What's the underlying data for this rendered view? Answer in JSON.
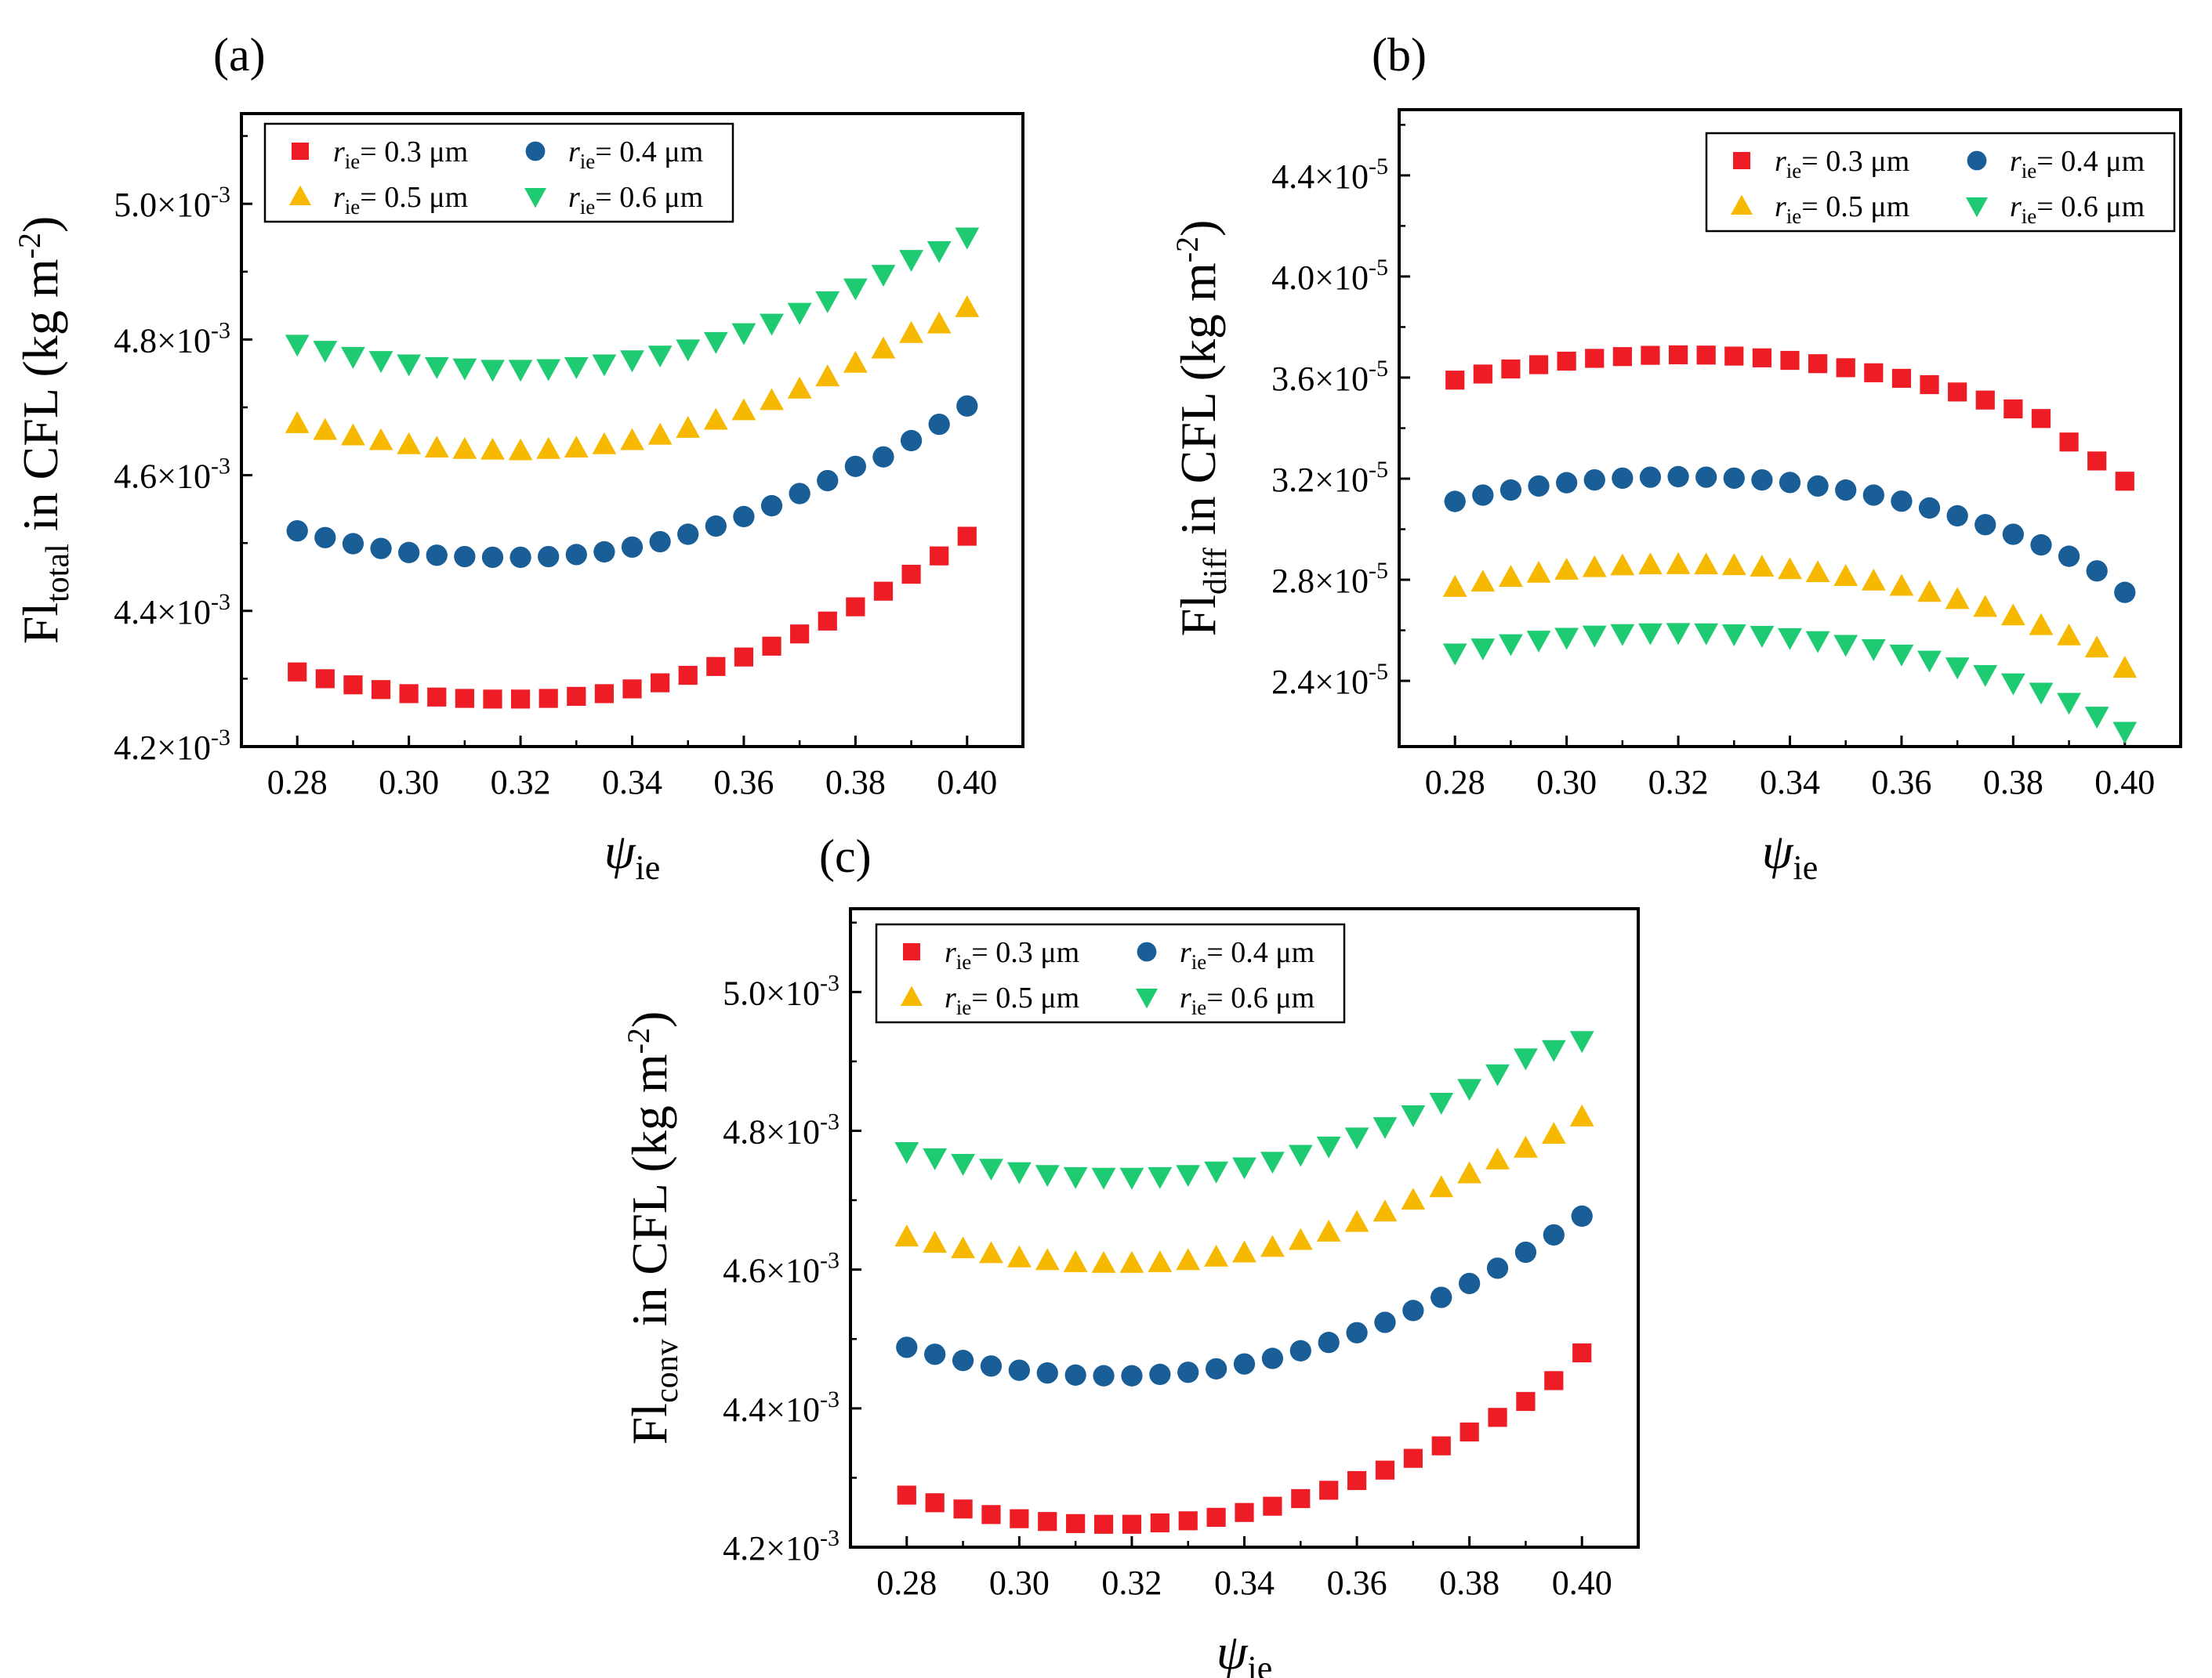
{
  "figure": {
    "colors": {
      "r03": "#EE1C25",
      "r04": "#1A5E97",
      "r05": "#F7B800",
      "r06": "#1FCB72"
    },
    "legend": [
      {
        "key": "r03",
        "prefix": "r",
        "subscript": "ie",
        "text": "= 0.3 μm",
        "marker": "square"
      },
      {
        "key": "r04",
        "prefix": "r",
        "subscript": "ie",
        "text": "= 0.4 μm",
        "marker": "circle"
      },
      {
        "key": "r05",
        "prefix": "r",
        "subscript": "ie",
        "text": "= 0.5 μm",
        "marker": "triangle-up"
      },
      {
        "key": "r06",
        "prefix": "r",
        "subscript": "ie",
        "text": "= 0.6 μm",
        "marker": "triangle-down"
      }
    ]
  },
  "chart_data": [
    {
      "id": "a",
      "panel_label": "(a)",
      "type": "scatter",
      "xlabel": {
        "main": "ψ",
        "sub": "ie"
      },
      "ylabel": {
        "main": "Fl",
        "sub": "total",
        "rest": " in CFL (kg m",
        "sup": "-2",
        "close": ")"
      },
      "xlim": [
        0.27,
        0.41
      ],
      "ylim": [
        0.0042,
        0.005133
      ],
      "x_ticks": [
        0.28,
        0.3,
        0.32,
        0.34,
        0.36,
        0.38,
        0.4
      ],
      "x_tick_labels": [
        "0.28",
        "0.30",
        "0.32",
        "0.34",
        "0.36",
        "0.38",
        "0.40"
      ],
      "y_ticks": [
        0.0042,
        0.0044,
        0.0046,
        0.0048,
        0.005
      ],
      "y_tick_labels": [
        {
          "mant": "4.2×10",
          "exp": "-3"
        },
        {
          "mant": "4.4×10",
          "exp": "-3"
        },
        {
          "mant": "4.6×10",
          "exp": "-3"
        },
        {
          "mant": "4.8×10",
          "exp": "-3"
        },
        {
          "mant": "5.0×10",
          "exp": "-3"
        }
      ],
      "legend_position": "top-left",
      "x_start": 0.28,
      "x_step": 0.005,
      "series": [
        {
          "key": "r03",
          "name": "r_ie = 0.3 μm",
          "values": [
            0.00431,
            0.0043,
            0.004291,
            0.004284,
            0.004278,
            0.004273,
            0.004271,
            0.00427,
            0.00427,
            0.004271,
            0.004274,
            0.004278,
            0.004285,
            0.004294,
            0.004305,
            0.004318,
            0.004332,
            0.004348,
            0.004366,
            0.004385,
            0.004406,
            0.004429,
            0.004454,
            0.004481,
            0.00451
          ]
        },
        {
          "key": "r04",
          "name": "r_ie = 0.4 μm",
          "values": [
            0.004518,
            0.004508,
            0.004499,
            0.004492,
            0.004486,
            0.004482,
            0.00448,
            0.004479,
            0.004479,
            0.00448,
            0.004483,
            0.004487,
            0.004494,
            0.004502,
            0.004513,
            0.004525,
            0.004539,
            0.004555,
            0.004573,
            0.004592,
            0.004613,
            0.004627,
            0.004651,
            0.004675,
            0.004702
          ]
        },
        {
          "key": "r05",
          "name": "r_ie = 0.5 μm",
          "values": [
            0.004676,
            0.004666,
            0.004658,
            0.004651,
            0.004645,
            0.00464,
            0.004638,
            0.004637,
            0.004636,
            0.004638,
            0.00464,
            0.004645,
            0.004651,
            0.004659,
            0.004669,
            0.004681,
            0.004695,
            0.00471,
            0.004727,
            0.004745,
            0.004765,
            0.004786,
            0.004809,
            0.004823,
            0.004847
          ]
        },
        {
          "key": "r06",
          "name": "r_ie = 0.6 μm",
          "values": [
            0.004793,
            0.004784,
            0.004775,
            0.004769,
            0.004764,
            0.00476,
            0.004758,
            0.004756,
            0.004756,
            0.004757,
            0.00476,
            0.004764,
            0.00477,
            0.004777,
            0.004786,
            0.004797,
            0.00481,
            0.004824,
            0.00484,
            0.004857,
            0.004876,
            0.004896,
            0.004918,
            0.004931,
            0.004951
          ]
        }
      ]
    },
    {
      "id": "b",
      "panel_label": "(b)",
      "type": "scatter",
      "xlabel": {
        "main": "ψ",
        "sub": "ie"
      },
      "ylabel": {
        "main": "Fl",
        "sub": "diff",
        "rest": " in CFL (kg m",
        "sup": "-2",
        "close": ")"
      },
      "xlim": [
        0.27,
        0.41
      ],
      "ylim": [
        2.14e-05,
        4.66e-05
      ],
      "x_ticks": [
        0.28,
        0.3,
        0.32,
        0.34,
        0.36,
        0.38,
        0.4
      ],
      "x_tick_labels": [
        "0.28",
        "0.30",
        "0.32",
        "0.34",
        "0.36",
        "0.38",
        "0.40"
      ],
      "y_ticks": [
        2.4e-05,
        2.8e-05,
        3.2e-05,
        3.6e-05,
        4e-05,
        4.4e-05
      ],
      "y_tick_labels": [
        {
          "mant": "2.4×10",
          "exp": "-5"
        },
        {
          "mant": "2.8×10",
          "exp": "-5"
        },
        {
          "mant": "3.2×10",
          "exp": "-5"
        },
        {
          "mant": "3.6×10",
          "exp": "-5"
        },
        {
          "mant": "4.0×10",
          "exp": "-5"
        },
        {
          "mant": "4.4×10",
          "exp": "-5"
        }
      ],
      "legend_position": "top-right",
      "x_start": 0.28,
      "x_step": 0.005,
      "series": [
        {
          "key": "r03",
          "name": "r_ie = 0.3 μm",
          "values": [
            3.59e-05,
            3.614e-05,
            3.634e-05,
            3.651e-05,
            3.665e-05,
            3.676e-05,
            3.683e-05,
            3.688e-05,
            3.69e-05,
            3.689e-05,
            3.685e-05,
            3.678e-05,
            3.668e-05,
            3.655e-05,
            3.639e-05,
            3.619e-05,
            3.597e-05,
            3.572e-05,
            3.543e-05,
            3.511e-05,
            3.476e-05,
            3.438e-05,
            3.345e-05,
            3.27e-05,
            3.19e-05
          ]
        },
        {
          "key": "r04",
          "name": "r_ie = 0.4 μm",
          "values": [
            3.11e-05,
            3.135e-05,
            3.155e-05,
            3.171e-05,
            3.184e-05,
            3.195e-05,
            3.202e-05,
            3.206e-05,
            3.208e-05,
            3.206e-05,
            3.202e-05,
            3.195e-05,
            3.185e-05,
            3.171e-05,
            3.155e-05,
            3.135e-05,
            3.111e-05,
            3.084e-05,
            3.053e-05,
            3.018e-05,
            2.98e-05,
            2.938e-05,
            2.893e-05,
            2.835e-05,
            2.75e-05
          ]
        },
        {
          "key": "r05",
          "name": "r_ie = 0.5 μm",
          "values": [
            2.77e-05,
            2.791e-05,
            2.81e-05,
            2.826e-05,
            2.838e-05,
            2.848e-05,
            2.855e-05,
            2.859e-05,
            2.86e-05,
            2.859e-05,
            2.856e-05,
            2.85e-05,
            2.84e-05,
            2.828e-05,
            2.813e-05,
            2.795e-05,
            2.774e-05,
            2.75e-05,
            2.722e-05,
            2.691e-05,
            2.657e-05,
            2.619e-05,
            2.578e-05,
            2.53e-05,
            2.45e-05
          ]
        },
        {
          "key": "r06",
          "name": "r_ie = 0.6 μm",
          "values": [
            2.51e-05,
            2.53e-05,
            2.547e-05,
            2.561e-05,
            2.572e-05,
            2.581e-05,
            2.587e-05,
            2.59e-05,
            2.591e-05,
            2.59e-05,
            2.586e-05,
            2.58e-05,
            2.571e-05,
            2.559e-05,
            2.544e-05,
            2.527e-05,
            2.506e-05,
            2.482e-05,
            2.455e-05,
            2.425e-05,
            2.392e-05,
            2.355e-05,
            2.315e-05,
            2.26e-05,
            2.2e-05
          ]
        }
      ]
    },
    {
      "id": "c",
      "panel_label": "(c)",
      "type": "scatter",
      "xlabel": {
        "main": "ψ",
        "sub": "ie"
      },
      "ylabel": {
        "main": "Fl",
        "sub": "conv",
        "rest": " in CFL (kg m",
        "sup": "-2",
        "close": ")"
      },
      "xlim": [
        0.27,
        0.41
      ],
      "ylim": [
        0.0042,
        0.00512
      ],
      "x_ticks": [
        0.28,
        0.3,
        0.32,
        0.34,
        0.36,
        0.38,
        0.4
      ],
      "x_tick_labels": [
        "0.28",
        "0.30",
        "0.32",
        "0.34",
        "0.36",
        "0.38",
        "0.40"
      ],
      "y_ticks": [
        0.0042,
        0.0044,
        0.0046,
        0.0048,
        0.005
      ],
      "y_tick_labels": [
        {
          "mant": "4.2×10",
          "exp": "-3"
        },
        {
          "mant": "4.4×10",
          "exp": "-3"
        },
        {
          "mant": "4.6×10",
          "exp": "-3"
        },
        {
          "mant": "4.8×10",
          "exp": "-3"
        },
        {
          "mant": "5.0×10",
          "exp": "-3"
        }
      ],
      "legend_position": "top-left",
      "x_start": 0.28,
      "x_step": 0.005,
      "series": [
        {
          "key": "r03",
          "name": "r_ie = 0.3 μm",
          "values": [
            0.004275,
            0.004264,
            0.004255,
            0.004247,
            0.004241,
            0.004237,
            0.004234,
            0.004233,
            0.004233,
            0.004235,
            0.004238,
            0.004243,
            0.00425,
            0.004259,
            0.00427,
            0.004282,
            0.004296,
            0.004311,
            0.004328,
            0.004346,
            0.004366,
            0.004387,
            0.00441,
            0.00444,
            0.00448
          ]
        },
        {
          "key": "r04",
          "name": "r_ie = 0.4 μm",
          "values": [
            0.004488,
            0.004478,
            0.004469,
            0.004461,
            0.004455,
            0.004451,
            0.004448,
            0.004447,
            0.004447,
            0.004449,
            0.004452,
            0.004457,
            0.004464,
            0.004472,
            0.004483,
            0.004495,
            0.004509,
            0.004524,
            0.004541,
            0.00456,
            0.00458,
            0.004602,
            0.004625,
            0.00465,
            0.004677
          ]
        },
        {
          "key": "r05",
          "name": "r_ie = 0.5 μm",
          "values": [
            0.004647,
            0.004638,
            0.00463,
            0.004623,
            0.004617,
            0.004613,
            0.00461,
            0.004609,
            0.004609,
            0.00461,
            0.004613,
            0.004618,
            0.004624,
            0.004632,
            0.004642,
            0.004654,
            0.004668,
            0.004683,
            0.0047,
            0.004718,
            0.004738,
            0.004758,
            0.004775,
            0.004795,
            0.00482
          ]
        },
        {
          "key": "r06",
          "name": "r_ie = 0.6 μm",
          "values": [
            0.00477,
            0.004761,
            0.004753,
            0.004746,
            0.004741,
            0.004737,
            0.004734,
            0.004733,
            0.004733,
            0.004734,
            0.004737,
            0.004742,
            0.004748,
            0.004756,
            0.004766,
            0.004778,
            0.004791,
            0.004806,
            0.004823,
            0.004841,
            0.004861,
            0.004882,
            0.004905,
            0.004917,
            0.00493
          ]
        }
      ]
    }
  ]
}
